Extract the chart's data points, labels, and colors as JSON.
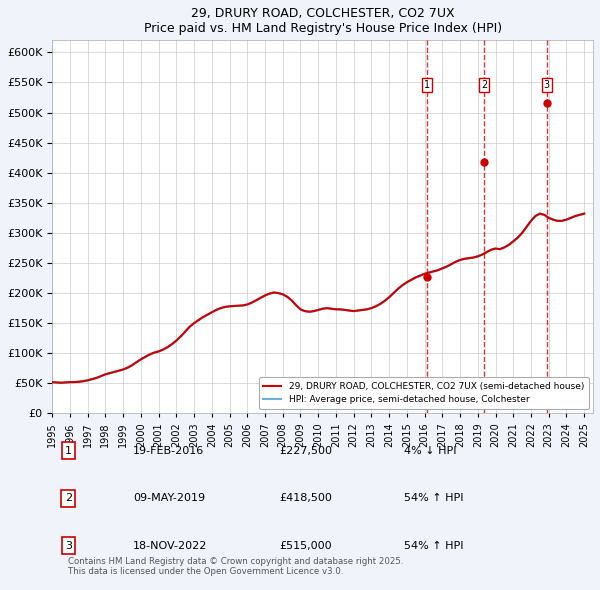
{
  "title": "29, DRURY ROAD, COLCHESTER, CO2 7UX",
  "subtitle": "Price paid vs. HM Land Registry's House Price Index (HPI)",
  "legend_label_red": "29, DRURY ROAD, COLCHESTER, CO2 7UX (semi-detached house)",
  "legend_label_blue": "HPI: Average price, semi-detached house, Colchester",
  "footer": "Contains HM Land Registry data © Crown copyright and database right 2025.\nThis data is licensed under the Open Government Licence v3.0.",
  "transactions": [
    {
      "num": 1,
      "date": "19-FEB-2016",
      "price": 227500,
      "pct": "4%",
      "dir": "↓",
      "year": 2016.12
    },
    {
      "num": 2,
      "date": "09-MAY-2019",
      "price": 418500,
      "pct": "54%",
      "dir": "↑",
      "year": 2019.35
    },
    {
      "num": 3,
      "date": "18-NOV-2022",
      "price": 515000,
      "pct": "54%",
      "dir": "↑",
      "year": 2022.88
    }
  ],
  "ylim": [
    0,
    620000
  ],
  "xlim_start": 1995.0,
  "xlim_end": 2025.5,
  "hpi_color": "#6dafd7",
  "price_color": "#cc0000",
  "vline_color": "#cc0000",
  "grid_color": "#cccccc",
  "background_color": "#f0f4fa",
  "plot_bg": "#ffffff",
  "hpi_data_x": [
    1995.0,
    1995.25,
    1995.5,
    1995.75,
    1996.0,
    1996.25,
    1996.5,
    1996.75,
    1997.0,
    1997.25,
    1997.5,
    1997.75,
    1998.0,
    1998.25,
    1998.5,
    1998.75,
    1999.0,
    1999.25,
    1999.5,
    1999.75,
    2000.0,
    2000.25,
    2000.5,
    2000.75,
    2001.0,
    2001.25,
    2001.5,
    2001.75,
    2002.0,
    2002.25,
    2002.5,
    2002.75,
    2003.0,
    2003.25,
    2003.5,
    2003.75,
    2004.0,
    2004.25,
    2004.5,
    2004.75,
    2005.0,
    2005.25,
    2005.5,
    2005.75,
    2006.0,
    2006.25,
    2006.5,
    2006.75,
    2007.0,
    2007.25,
    2007.5,
    2007.75,
    2008.0,
    2008.25,
    2008.5,
    2008.75,
    2009.0,
    2009.25,
    2009.5,
    2009.75,
    2010.0,
    2010.25,
    2010.5,
    2010.75,
    2011.0,
    2011.25,
    2011.5,
    2011.75,
    2012.0,
    2012.25,
    2012.5,
    2012.75,
    2013.0,
    2013.25,
    2013.5,
    2013.75,
    2014.0,
    2014.25,
    2014.5,
    2014.75,
    2015.0,
    2015.25,
    2015.5,
    2015.75,
    2016.0,
    2016.25,
    2016.5,
    2016.75,
    2017.0,
    2017.25,
    2017.5,
    2017.75,
    2018.0,
    2018.25,
    2018.5,
    2018.75,
    2019.0,
    2019.25,
    2019.5,
    2019.75,
    2020.0,
    2020.25,
    2020.5,
    2020.75,
    2021.0,
    2021.25,
    2021.5,
    2021.75,
    2022.0,
    2022.25,
    2022.5,
    2022.75,
    2023.0,
    2023.25,
    2023.5,
    2023.75,
    2024.0,
    2024.25,
    2024.5,
    2024.75,
    2025.0
  ],
  "hpi_data_y": [
    52000,
    51500,
    51000,
    51500,
    52000,
    52500,
    53000,
    54000,
    55000,
    57000,
    59000,
    62000,
    65000,
    67000,
    69000,
    71000,
    73000,
    76000,
    80000,
    85000,
    90000,
    94000,
    98000,
    101000,
    103000,
    106000,
    110000,
    115000,
    121000,
    128000,
    136000,
    144000,
    150000,
    155000,
    160000,
    164000,
    168000,
    172000,
    175000,
    177000,
    178000,
    178500,
    179000,
    179500,
    181000,
    184000,
    188000,
    192000,
    196000,
    199000,
    201000,
    200000,
    198000,
    194000,
    188000,
    180000,
    173000,
    170000,
    169000,
    170000,
    172000,
    174000,
    175000,
    174000,
    173000,
    173000,
    172000,
    171000,
    170000,
    171000,
    172000,
    173000,
    175000,
    178000,
    182000,
    187000,
    193000,
    200000,
    207000,
    213000,
    218000,
    222000,
    226000,
    229000,
    232000,
    234000,
    236000,
    238000,
    241000,
    244000,
    248000,
    252000,
    255000,
    257000,
    258000,
    259000,
    261000,
    264000,
    268000,
    272000,
    274000,
    273000,
    276000,
    280000,
    286000,
    292000,
    300000,
    310000,
    320000,
    328000,
    332000,
    330000,
    325000,
    322000,
    320000,
    320000,
    322000,
    325000,
    328000,
    330000,
    332000
  ],
  "price_data_x": [
    1995.0,
    1995.25,
    1995.5,
    1995.75,
    1996.0,
    1996.25,
    1996.5,
    1996.75,
    1997.0,
    1997.25,
    1997.5,
    1997.75,
    1998.0,
    1998.25,
    1998.5,
    1998.75,
    1999.0,
    1999.25,
    1999.5,
    1999.75,
    2000.0,
    2000.25,
    2000.5,
    2000.75,
    2001.0,
    2001.25,
    2001.5,
    2001.75,
    2002.0,
    2002.25,
    2002.5,
    2002.75,
    2003.0,
    2003.25,
    2003.5,
    2003.75,
    2004.0,
    2004.25,
    2004.5,
    2004.75,
    2005.0,
    2005.25,
    2005.5,
    2005.75,
    2006.0,
    2006.25,
    2006.5,
    2006.75,
    2007.0,
    2007.25,
    2007.5,
    2007.75,
    2008.0,
    2008.25,
    2008.5,
    2008.75,
    2009.0,
    2009.25,
    2009.5,
    2009.75,
    2010.0,
    2010.25,
    2010.5,
    2010.75,
    2011.0,
    2011.25,
    2011.5,
    2011.75,
    2012.0,
    2012.25,
    2012.5,
    2012.75,
    2013.0,
    2013.25,
    2013.5,
    2013.75,
    2014.0,
    2014.25,
    2014.5,
    2014.75,
    2015.0,
    2015.25,
    2015.5,
    2015.75,
    2016.0,
    2016.25,
    2016.5,
    2016.75,
    2017.0,
    2017.25,
    2017.5,
    2017.75,
    2018.0,
    2018.25,
    2018.5,
    2018.75,
    2019.0,
    2019.25,
    2019.5,
    2019.75,
    2020.0,
    2020.25,
    2020.5,
    2020.75,
    2021.0,
    2021.25,
    2021.5,
    2021.75,
    2022.0,
    2022.25,
    2022.5,
    2022.75,
    2023.0,
    2023.25,
    2023.5,
    2023.75,
    2024.0,
    2024.25,
    2024.5,
    2024.75,
    2025.0
  ],
  "price_data_y": [
    52000,
    51500,
    51000,
    51500,
    52000,
    52000,
    52500,
    53500,
    55000,
    57000,
    59000,
    62000,
    65000,
    67000,
    69000,
    71000,
    73000,
    76000,
    80000,
    85000,
    90000,
    94000,
    98000,
    101000,
    103000,
    106000,
    110000,
    115000,
    121000,
    128000,
    136000,
    144000,
    150000,
    155000,
    160000,
    164000,
    168000,
    172000,
    175000,
    177000,
    178000,
    178500,
    179000,
    179500,
    181000,
    184000,
    188000,
    192000,
    196000,
    199000,
    201000,
    200000,
    198000,
    194000,
    188000,
    180000,
    173000,
    170000,
    169000,
    170000,
    172000,
    174000,
    175000,
    174000,
    173000,
    173000,
    172000,
    171000,
    170000,
    171000,
    172000,
    173000,
    175000,
    178000,
    182000,
    187000,
    193000,
    200000,
    207000,
    213000,
    218000,
    222000,
    226000,
    229000,
    232000,
    234000,
    236000,
    238000,
    241000,
    244000,
    248000,
    252000,
    255000,
    257000,
    258000,
    259000,
    261000,
    264000,
    268000,
    272000,
    274000,
    273000,
    276000,
    280000,
    286000,
    292000,
    300000,
    310000,
    320000,
    328000,
    332000,
    330000,
    325000,
    322000,
    320000,
    320000,
    322000,
    325000,
    328000,
    330000,
    332000
  ]
}
